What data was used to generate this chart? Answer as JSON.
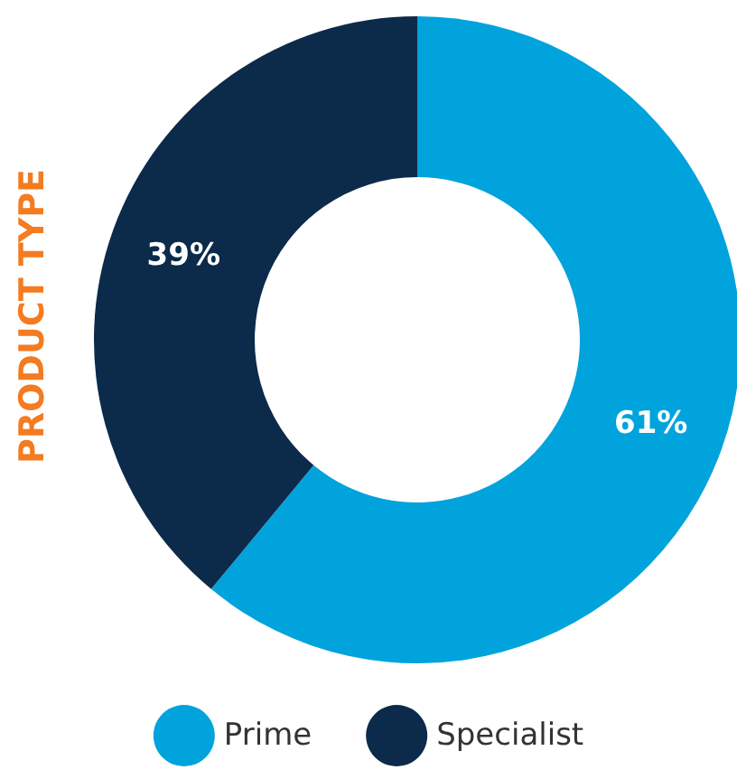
{
  "chart_data": {
    "type": "donut",
    "title": "PRODUCT TYPE",
    "categories": [
      "Prime",
      "Specialist"
    ],
    "values": [
      61,
      39
    ],
    "colors": [
      "#00a3dc",
      "#0c2a4a"
    ],
    "value_labels": [
      "61%",
      "39%"
    ],
    "legend": "bottom"
  }
}
